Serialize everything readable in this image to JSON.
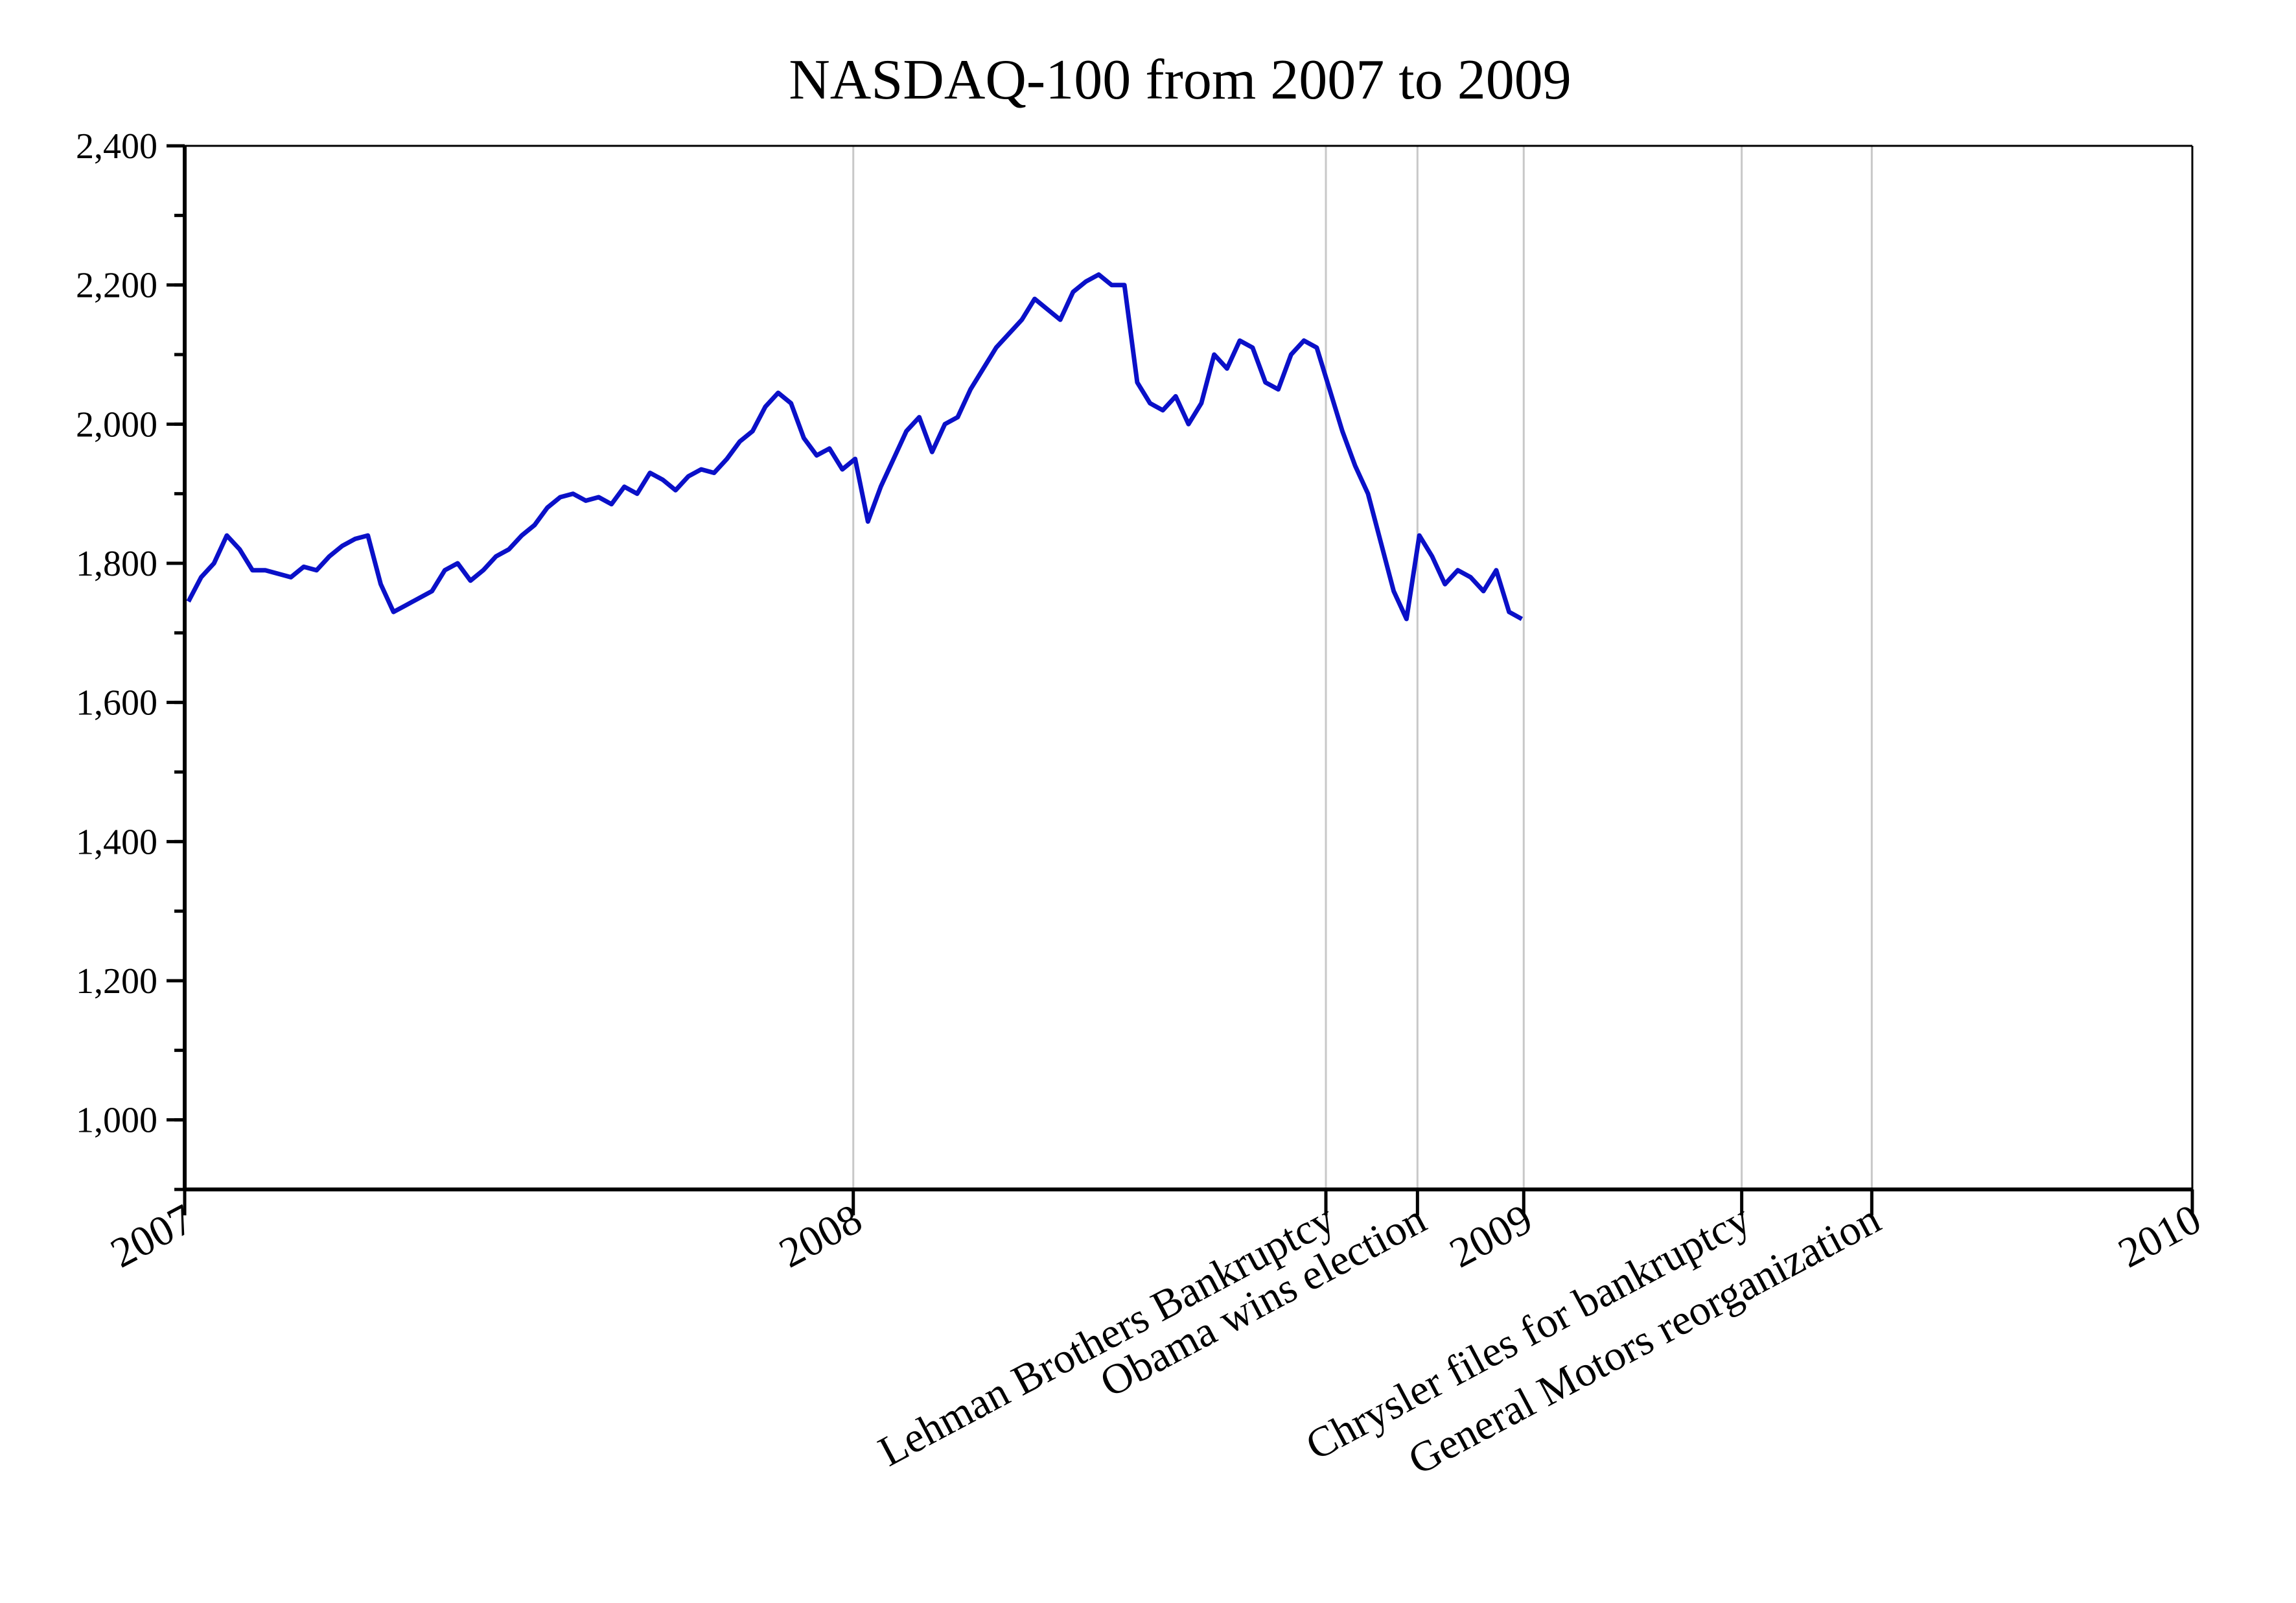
{
  "chart_data": {
    "type": "line",
    "title": "NASDAQ-100 from 2007 to 2009",
    "xlabel": "",
    "ylabel": "",
    "xlim": [
      "2007-01-01",
      "2010-01-01"
    ],
    "ylim": [
      900,
      2400
    ],
    "grid": "vertical lines at labeled dates",
    "legend": "none",
    "line_color": "#0a10c8",
    "grid_color": "#c8c8c8",
    "y_ticks": [
      {
        "value": 1000,
        "label": "1,000"
      },
      {
        "value": 1200,
        "label": "1,200"
      },
      {
        "value": 1400,
        "label": "1,400"
      },
      {
        "value": 1600,
        "label": "1,600"
      },
      {
        "value": 1800,
        "label": "1,800"
      },
      {
        "value": 2000,
        "label": "2,000"
      },
      {
        "value": 2200,
        "label": "2,200"
      },
      {
        "value": 2400,
        "label": "2,400"
      }
    ],
    "y_minor_step": 100,
    "x_ticks": [
      {
        "date": "2007-01-01",
        "label": "2007"
      },
      {
        "date": "2008-01-01",
        "label": "2008"
      },
      {
        "date": "2008-09-15",
        "label": "Lehman Brothers Bankruptcy"
      },
      {
        "date": "2008-11-04",
        "label": "Obama wins election"
      },
      {
        "date": "2009-01-01",
        "label": "2009"
      },
      {
        "date": "2009-04-30",
        "label": "Chrysler files for bankruptcy"
      },
      {
        "date": "2009-07-10",
        "label": "General Motors reorganization"
      },
      {
        "date": "2010-01-01",
        "label": "2010"
      }
    ],
    "series": [
      {
        "values": [
          [
            "2007-01-03",
            1745
          ],
          [
            "2007-01-10",
            1780
          ],
          [
            "2007-01-17",
            1800
          ],
          [
            "2007-01-24",
            1840
          ],
          [
            "2007-01-31",
            1820
          ],
          [
            "2007-02-07",
            1790
          ],
          [
            "2007-02-14",
            1790
          ],
          [
            "2007-02-21",
            1785
          ],
          [
            "2007-02-28",
            1780
          ],
          [
            "2007-03-07",
            1795
          ],
          [
            "2007-03-14",
            1790
          ],
          [
            "2007-03-21",
            1810
          ],
          [
            "2007-03-28",
            1825
          ],
          [
            "2007-04-04",
            1835
          ],
          [
            "2007-04-11",
            1840
          ],
          [
            "2007-04-18",
            1770
          ],
          [
            "2007-04-25",
            1730
          ],
          [
            "2007-05-02",
            1740
          ],
          [
            "2007-05-09",
            1750
          ],
          [
            "2007-05-16",
            1760
          ],
          [
            "2007-05-23",
            1790
          ],
          [
            "2007-05-30",
            1800
          ],
          [
            "2007-06-06",
            1775
          ],
          [
            "2007-06-13",
            1790
          ],
          [
            "2007-06-20",
            1810
          ],
          [
            "2007-06-27",
            1820
          ],
          [
            "2007-07-04",
            1840
          ],
          [
            "2007-07-11",
            1855
          ],
          [
            "2007-07-18",
            1880
          ],
          [
            "2007-07-25",
            1895
          ],
          [
            "2007-08-01",
            1900
          ],
          [
            "2007-08-08",
            1890
          ],
          [
            "2007-08-15",
            1895
          ],
          [
            "2007-08-22",
            1885
          ],
          [
            "2007-08-29",
            1910
          ],
          [
            "2007-09-05",
            1900
          ],
          [
            "2007-09-12",
            1930
          ],
          [
            "2007-09-19",
            1920
          ],
          [
            "2007-09-26",
            1905
          ],
          [
            "2007-10-03",
            1925
          ],
          [
            "2007-10-10",
            1935
          ],
          [
            "2007-10-17",
            1930
          ],
          [
            "2007-10-24",
            1950
          ],
          [
            "2007-10-31",
            1975
          ],
          [
            "2007-11-07",
            1990
          ],
          [
            "2007-11-14",
            2025
          ],
          [
            "2007-11-21",
            2045
          ],
          [
            "2007-11-28",
            2030
          ],
          [
            "2007-12-05",
            1980
          ],
          [
            "2007-12-12",
            1955
          ],
          [
            "2007-12-19",
            1965
          ],
          [
            "2007-12-26",
            1935
          ],
          [
            "2008-01-02",
            1950
          ],
          [
            "2008-01-09",
            1860
          ],
          [
            "2008-01-16",
            1910
          ],
          [
            "2008-01-23",
            1950
          ],
          [
            "2008-01-30",
            1990
          ],
          [
            "2008-02-06",
            2010
          ],
          [
            "2008-02-13",
            1960
          ],
          [
            "2008-02-20",
            2000
          ],
          [
            "2008-02-27",
            2010
          ],
          [
            "2008-03-05",
            2050
          ],
          [
            "2008-03-12",
            2080
          ],
          [
            "2008-03-19",
            2110
          ],
          [
            "2008-03-26",
            2130
          ],
          [
            "2008-04-02",
            2150
          ],
          [
            "2008-04-09",
            2180
          ],
          [
            "2008-04-16",
            2165
          ],
          [
            "2008-04-23",
            2150
          ],
          [
            "2008-04-30",
            2190
          ],
          [
            "2008-05-07",
            2205
          ],
          [
            "2008-05-14",
            2215
          ],
          [
            "2008-05-21",
            2200
          ],
          [
            "2008-05-28",
            2200
          ],
          [
            "2008-06-04",
            2060
          ],
          [
            "2008-06-11",
            2030
          ],
          [
            "2008-06-18",
            2020
          ],
          [
            "2008-06-25",
            2040
          ],
          [
            "2008-07-02",
            2000
          ],
          [
            "2008-07-09",
            2030
          ],
          [
            "2008-07-16",
            2100
          ],
          [
            "2008-07-23",
            2080
          ],
          [
            "2008-07-30",
            2120
          ],
          [
            "2008-08-06",
            2110
          ],
          [
            "2008-08-13",
            2060
          ],
          [
            "2008-08-20",
            2050
          ],
          [
            "2008-08-27",
            2100
          ],
          [
            "2008-09-03",
            2120
          ],
          [
            "2008-09-10",
            2110
          ],
          [
            "2008-09-17",
            2050
          ],
          [
            "2008-09-24",
            1990
          ],
          [
            "2008-10-01",
            1940
          ],
          [
            "2008-10-08",
            1900
          ],
          [
            "2008-10-15",
            1830
          ],
          [
            "2008-10-22",
            1760
          ],
          [
            "2008-10-29",
            1720
          ],
          [
            "2008-11-05",
            1840
          ],
          [
            "2008-11-12",
            1810
          ],
          [
            "2008-11-19",
            1770
          ],
          [
            "2008-11-26",
            1790
          ],
          [
            "2008-12-03",
            1780
          ],
          [
            "2008-12-10",
            1760
          ],
          [
            "2008-12-17",
            1790
          ],
          [
            "2008-12-24",
            1730
          ],
          [
            "2008-12-31",
            1720
          ]
        ]
      }
    ]
  }
}
